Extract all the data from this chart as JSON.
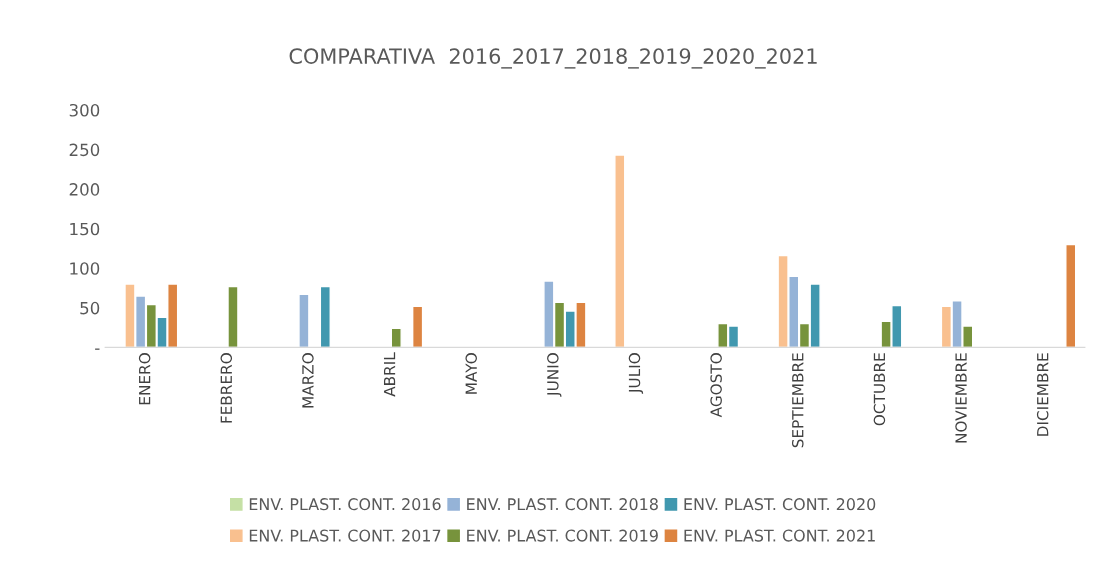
{
  "chart_data": {
    "type": "bar",
    "title": "COMPARATIVA  2016_2017_2018_2019_2020_2021",
    "categories": [
      "ENERO",
      "FEBRERO",
      "MARZO",
      "ABRIL",
      "MAYO",
      "JUNIO",
      "JULIO",
      "AGOSTO",
      "SEPTIEMBRE",
      "OCTUBRE",
      "NOVIEMBRE",
      "DICIEMBRE"
    ],
    "series": [
      {
        "name": "ENV. PLAST. CONT. 2016",
        "color": "#c5e0a5",
        "values": [
          null,
          null,
          null,
          null,
          null,
          null,
          null,
          null,
          null,
          null,
          null,
          null
        ]
      },
      {
        "name": "ENV. PLAST. CONT. 2017",
        "color": "#f9c08f",
        "values": [
          80,
          null,
          null,
          null,
          null,
          null,
          243,
          null,
          116,
          null,
          52,
          null
        ]
      },
      {
        "name": "ENV. PLAST. CONT. 2018",
        "color": "#95b3d7",
        "values": [
          65,
          null,
          67,
          null,
          null,
          84,
          null,
          null,
          90,
          null,
          59,
          null
        ]
      },
      {
        "name": "ENV. PLAST. CONT. 2019",
        "color": "#77933c",
        "values": [
          54,
          77,
          null,
          24,
          null,
          57,
          null,
          30,
          30,
          33,
          27,
          null
        ]
      },
      {
        "name": "ENV. PLAST. CONT. 2020",
        "color": "#4198af",
        "values": [
          38,
          null,
          77,
          null,
          null,
          46,
          null,
          27,
          80,
          53,
          null,
          null
        ]
      },
      {
        "name": "ENV. PLAST. CONT. 2021",
        "color": "#dd8441",
        "values": [
          80,
          null,
          null,
          52,
          null,
          57,
          null,
          null,
          null,
          null,
          null,
          130
        ]
      }
    ],
    "ylim": [
      0,
      300
    ],
    "yticks": [
      {
        "value": 0,
        "label": "-"
      },
      50,
      100,
      150,
      200,
      250,
      300
    ],
    "grid": false,
    "legend": "bottom"
  }
}
